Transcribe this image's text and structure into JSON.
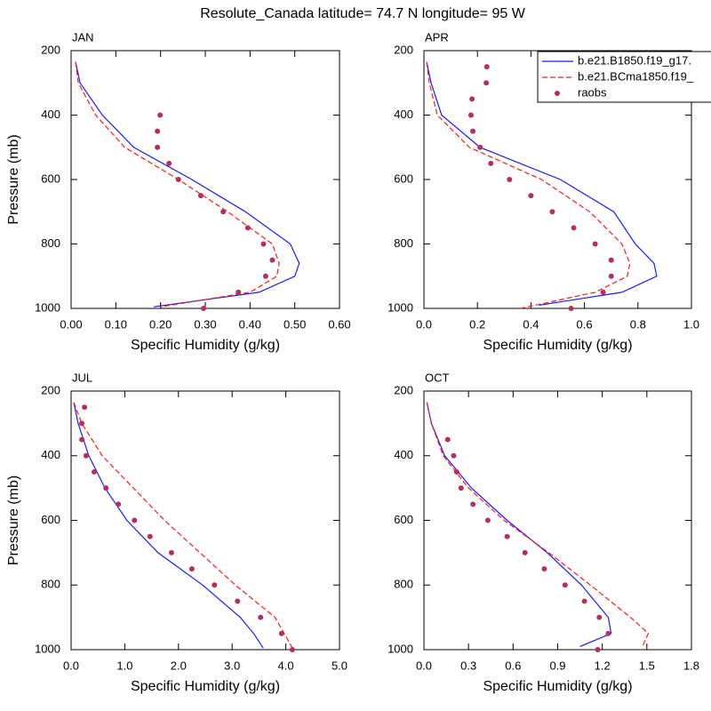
{
  "title": "Resolute_Canada  latitude= 74.7 N longitude= 95 W",
  "chart_data": [
    {
      "type": "line",
      "title": "JAN",
      "xlabel": "Specific Humidity (g/kg)",
      "ylabel": "Pressure (mb)",
      "xlim": [
        0,
        0.6
      ],
      "xticks": [
        {
          "value": 0,
          "label": "0.00"
        },
        {
          "value": 0.1,
          "label": "0.10"
        },
        {
          "value": 0.2,
          "label": "0.20"
        },
        {
          "value": 0.3,
          "label": "0.30"
        },
        {
          "value": 0.4,
          "label": "0.40"
        },
        {
          "value": 0.5,
          "label": "0.50"
        },
        {
          "value": 0.6,
          "label": "0.60"
        }
      ],
      "ylim": [
        200,
        1000
      ],
      "yticks": [
        200,
        400,
        600,
        800,
        1000
      ],
      "y_inverted": true,
      "legend": false,
      "series": [
        {
          "name": "b.e21.B1850.f19_g17.",
          "color": "#1a1aff",
          "style": "solid",
          "x": [
            0.01,
            0.02,
            0.07,
            0.14,
            0.27,
            0.39,
            0.49,
            0.51,
            0.5,
            0.42,
            0.185
          ],
          "y": [
            235,
            300,
            400,
            500,
            600,
            700,
            800,
            860,
            900,
            950,
            995
          ]
        },
        {
          "name": "b.e21.BCma1850.f19_",
          "color": "#ff1a1a",
          "style": "dashed",
          "x": [
            0.01,
            0.016,
            0.055,
            0.12,
            0.24,
            0.35,
            0.45,
            0.465,
            0.46,
            0.4,
            0.2
          ],
          "y": [
            235,
            300,
            400,
            500,
            600,
            700,
            800,
            860,
            900,
            950,
            995
          ]
        },
        {
          "name": "raobs",
          "color": "#b03060",
          "style": "markers",
          "x": [
            0.199,
            0.193,
            0.193,
            0.219,
            0.24,
            0.29,
            0.34,
            0.395,
            0.43,
            0.45,
            0.435,
            0.374,
            0.296
          ],
          "y": [
            400,
            450,
            500,
            550,
            600,
            650,
            700,
            750,
            800,
            850,
            900,
            950,
            1000
          ]
        }
      ]
    },
    {
      "type": "line",
      "title": "APR",
      "xlabel": "Specific Humidity (g/kg)",
      "xlim": [
        0,
        1
      ],
      "xticks": [
        {
          "value": 0,
          "label": "0.0"
        },
        {
          "value": 0.2,
          "label": "0.2"
        },
        {
          "value": 0.4,
          "label": "0.4"
        },
        {
          "value": 0.6,
          "label": "0.6"
        },
        {
          "value": 0.8,
          "label": "0.8"
        },
        {
          "value": 1,
          "label": "1.0"
        }
      ],
      "ylim": [
        200,
        1000
      ],
      "yticks": [
        200,
        400,
        600,
        800,
        1000
      ],
      "y_inverted": true,
      "legend": true,
      "series": [
        {
          "name": "b.e21.B1850.f19_g17.",
          "color": "#1a1aff",
          "style": "solid",
          "x": [
            0.01,
            0.027,
            0.066,
            0.21,
            0.51,
            0.71,
            0.79,
            0.86,
            0.87,
            0.74,
            0.43
          ],
          "y": [
            235,
            300,
            400,
            500,
            600,
            700,
            800,
            860,
            900,
            950,
            990
          ]
        },
        {
          "name": "b.e21.BCma1850.f19_",
          "color": "#ff1a1a",
          "style": "dashed",
          "x": [
            0.01,
            0.02,
            0.05,
            0.17,
            0.44,
            0.62,
            0.74,
            0.77,
            0.76,
            0.64,
            0.36
          ],
          "y": [
            235,
            300,
            400,
            500,
            600,
            700,
            800,
            860,
            900,
            950,
            1000
          ]
        },
        {
          "name": "raobs",
          "color": "#b03060",
          "style": "markers",
          "x": [
            0.235,
            0.233,
            0.18,
            0.176,
            0.183,
            0.21,
            0.25,
            0.32,
            0.4,
            0.48,
            0.56,
            0.64,
            0.7,
            0.7,
            0.67,
            0.55
          ],
          "y": [
            250,
            300,
            350,
            400,
            450,
            500,
            550,
            600,
            650,
            700,
            750,
            800,
            850,
            900,
            950,
            1000
          ]
        }
      ]
    },
    {
      "type": "line",
      "title": "JUL",
      "xlabel": "Specific Humidity (g/kg)",
      "ylabel": "Pressure (mb)",
      "xlim": [
        0,
        5
      ],
      "xticks": [
        {
          "value": 0,
          "label": "0.0"
        },
        {
          "value": 1,
          "label": "1.0"
        },
        {
          "value": 2,
          "label": "2.0"
        },
        {
          "value": 3,
          "label": "3.0"
        },
        {
          "value": 4,
          "label": "4.0"
        },
        {
          "value": 5,
          "label": "5.0"
        }
      ],
      "ylim": [
        200,
        1000
      ],
      "yticks": [
        200,
        400,
        600,
        800,
        1000
      ],
      "y_inverted": true,
      "legend": false,
      "series": [
        {
          "name": "b.e21.B1850.f19_g17.",
          "color": "#1a1aff",
          "style": "solid",
          "x": [
            0.05,
            0.13,
            0.33,
            0.63,
            1.04,
            1.62,
            2.45,
            3.15,
            3.4,
            3.58
          ],
          "y": [
            235,
            300,
            400,
            500,
            600,
            700,
            800,
            900,
            950,
            995
          ]
        },
        {
          "name": "b.e21.BCma1850.f19_",
          "color": "#ff1a1a",
          "style": "dashed",
          "x": [
            0.05,
            0.2,
            0.58,
            1.16,
            1.74,
            2.4,
            3.06,
            3.8,
            3.97,
            4.14
          ],
          "y": [
            235,
            300,
            400,
            500,
            600,
            700,
            800,
            900,
            950,
            1000
          ]
        },
        {
          "name": "raobs",
          "color": "#b03060",
          "style": "markers",
          "x": [
            0.25,
            0.2,
            0.2,
            0.28,
            0.43,
            0.65,
            0.88,
            1.18,
            1.47,
            1.87,
            2.25,
            2.67,
            3.1,
            3.53,
            3.92,
            4.12
          ],
          "y": [
            250,
            300,
            350,
            400,
            450,
            500,
            550,
            600,
            650,
            700,
            750,
            800,
            850,
            900,
            950,
            1000
          ]
        }
      ]
    },
    {
      "type": "line",
      "title": "OCT",
      "xlabel": "Specific Humidity (g/kg)",
      "xlim": [
        0,
        1.8
      ],
      "xticks": [
        {
          "value": 0,
          "label": "0.0"
        },
        {
          "value": 0.3,
          "label": "0.3"
        },
        {
          "value": 0.6,
          "label": "0.6"
        },
        {
          "value": 0.9,
          "label": "0.9"
        },
        {
          "value": 1.2,
          "label": "1.2"
        },
        {
          "value": 1.5,
          "label": "1.5"
        },
        {
          "value": 1.8,
          "label": "1.8"
        }
      ],
      "ylim": [
        200,
        1000
      ],
      "yticks": [
        200,
        400,
        600,
        800,
        1000
      ],
      "y_inverted": true,
      "legend": false,
      "series": [
        {
          "name": "b.e21.B1850.f19_g17.",
          "color": "#1a1aff",
          "style": "solid",
          "x": [
            0.02,
            0.05,
            0.14,
            0.32,
            0.56,
            0.83,
            1.06,
            1.24,
            1.26,
            1.05
          ],
          "y": [
            235,
            300,
            400,
            500,
            600,
            700,
            800,
            900,
            950,
            990
          ]
        },
        {
          "name": "b.e21.BCma1850.f19_",
          "color": "#ff1a1a",
          "style": "dashed",
          "x": [
            0.02,
            0.05,
            0.13,
            0.3,
            0.54,
            0.84,
            1.12,
            1.39,
            1.51,
            1.47
          ],
          "y": [
            235,
            300,
            400,
            500,
            600,
            700,
            800,
            900,
            950,
            990
          ]
        },
        {
          "name": "raobs",
          "color": "#b03060",
          "style": "markers",
          "x": [
            0.16,
            0.2,
            0.22,
            0.25,
            0.33,
            0.43,
            0.56,
            0.68,
            0.81,
            0.95,
            1.08,
            1.18,
            1.24,
            1.17
          ],
          "y": [
            350,
            400,
            450,
            500,
            550,
            600,
            650,
            700,
            750,
            800,
            850,
            900,
            950,
            1000
          ]
        }
      ]
    }
  ]
}
